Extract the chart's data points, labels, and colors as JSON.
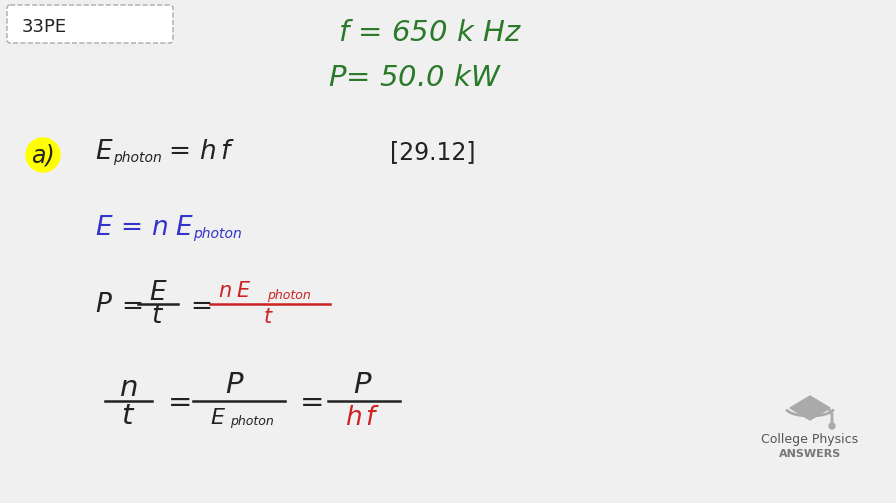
{
  "background_color": "#f0f0f0",
  "title_box_text": "33PE",
  "green_color": "#2a7a2a",
  "blue_color": "#3333cc",
  "red_color": "#cc2222",
  "black_color": "#222222",
  "yellow_highlight": "#ffff00",
  "logo_text1": "College Physics",
  "logo_text2": "ANSWERS"
}
